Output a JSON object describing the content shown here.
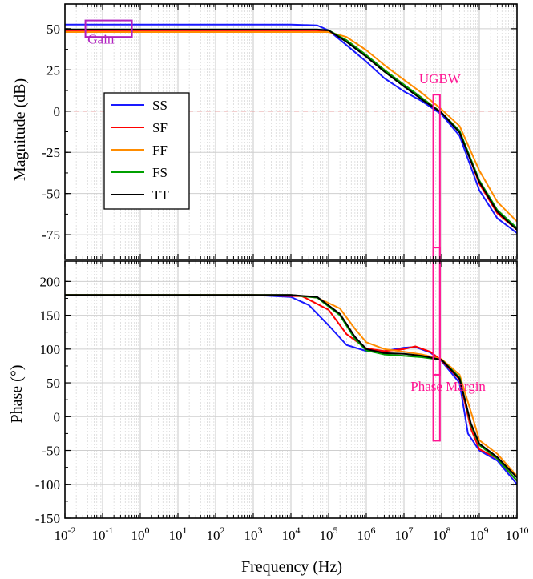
{
  "chart_data": {
    "type": "line",
    "x_scale": "log",
    "xlabel": "Frequency (Hz)",
    "xlim": [
      0.01,
      10000000000
    ],
    "x_ticks": [
      {
        "value": 0.01,
        "base": "10",
        "exp": "-2"
      },
      {
        "value": 0.1,
        "base": "10",
        "exp": "-1"
      },
      {
        "value": 1,
        "base": "10",
        "exp": "0"
      },
      {
        "value": 10,
        "base": "10",
        "exp": "1"
      },
      {
        "value": 100,
        "base": "10",
        "exp": "2"
      },
      {
        "value": 1000,
        "base": "10",
        "exp": "3"
      },
      {
        "value": 10000,
        "base": "10",
        "exp": "4"
      },
      {
        "value": 100000,
        "base": "10",
        "exp": "5"
      },
      {
        "value": 1000000,
        "base": "10",
        "exp": "6"
      },
      {
        "value": 10000000,
        "base": "10",
        "exp": "7"
      },
      {
        "value": 100000000,
        "base": "10",
        "exp": "8"
      },
      {
        "value": 1000000000,
        "base": "10",
        "exp": "9"
      },
      {
        "value": 10000000000,
        "base": "10",
        "exp": "10"
      }
    ],
    "grid": true,
    "legend": {
      "placement": "left-middle of magnitude panel",
      "entries": [
        "SS",
        "SF",
        "FF",
        "FS",
        "TT"
      ]
    },
    "panels": [
      {
        "name": "magnitude",
        "ylabel": "Magnitude (dB)",
        "ylim": [
          -90,
          65
        ],
        "y_ticks": [
          50,
          25,
          0,
          -25,
          -50,
          -75
        ],
        "y_tick_labels": [
          "50",
          "25",
          "0",
          "-25",
          "-50",
          "-75"
        ],
        "reference_line": {
          "y": 0,
          "color": "#e88a8a",
          "style": "dashed"
        },
        "series": [
          {
            "name": "SS",
            "color": "#1a1aff",
            "points": [
              [
                0.01,
                52.5
              ],
              [
                10000,
                52.5
              ],
              [
                50000,
                52
              ],
              [
                100000,
                49
              ],
              [
                300000,
                40
              ],
              [
                1000000,
                30
              ],
              [
                3000000,
                20
              ],
              [
                10000000,
                12
              ],
              [
                30000000,
                6
              ],
              [
                100000000,
                -2
              ],
              [
                300000000,
                -15
              ],
              [
                1000000000,
                -48
              ],
              [
                3000000000,
                -65
              ],
              [
                10000000000,
                -74
              ]
            ]
          },
          {
            "name": "SF",
            "color": "#ff0000",
            "points": [
              [
                0.01,
                49
              ],
              [
                50000,
                49
              ],
              [
                100000,
                48.5
              ],
              [
                300000,
                43
              ],
              [
                1000000,
                34
              ],
              [
                3000000,
                25
              ],
              [
                10000000,
                16
              ],
              [
                30000000,
                8
              ],
              [
                100000000,
                -1
              ],
              [
                300000000,
                -12
              ],
              [
                1000000000,
                -44
              ],
              [
                3000000000,
                -62
              ],
              [
                10000000000,
                -72
              ]
            ]
          },
          {
            "name": "FF",
            "color": "#ff8c00",
            "points": [
              [
                0.01,
                48
              ],
              [
                50000,
                48
              ],
              [
                100000,
                48
              ],
              [
                300000,
                45
              ],
              [
                1000000,
                37
              ],
              [
                3000000,
                28
              ],
              [
                10000000,
                19
              ],
              [
                30000000,
                11
              ],
              [
                100000000,
                1
              ],
              [
                300000000,
                -9
              ],
              [
                1000000000,
                -36
              ],
              [
                3000000000,
                -55
              ],
              [
                10000000000,
                -67
              ]
            ]
          },
          {
            "name": "FS",
            "color": "#00a000",
            "points": [
              [
                0.01,
                49.5
              ],
              [
                50000,
                49.5
              ],
              [
                100000,
                49
              ],
              [
                300000,
                43
              ],
              [
                1000000,
                34
              ],
              [
                3000000,
                25
              ],
              [
                10000000,
                16
              ],
              [
                30000000,
                8
              ],
              [
                100000000,
                -1
              ],
              [
                300000000,
                -12
              ],
              [
                1000000000,
                -42
              ],
              [
                3000000000,
                -60
              ],
              [
                10000000000,
                -71
              ]
            ]
          },
          {
            "name": "TT",
            "color": "#000000",
            "points": [
              [
                0.01,
                49.5
              ],
              [
                50000,
                49.5
              ],
              [
                100000,
                49
              ],
              [
                300000,
                42
              ],
              [
                1000000,
                33
              ],
              [
                3000000,
                24
              ],
              [
                10000000,
                15
              ],
              [
                30000000,
                7
              ],
              [
                100000000,
                -1
              ],
              [
                300000000,
                -13
              ],
              [
                1000000000,
                -43
              ],
              [
                3000000000,
                -61
              ],
              [
                10000000000,
                -72
              ]
            ]
          }
        ],
        "annotations": [
          {
            "text": "Gain",
            "color": "#b020c0",
            "box_x": [
              0.035,
              0.6
            ],
            "box_y": [
              45,
              55
            ],
            "label_at": [
              0.04,
              41
            ]
          },
          {
            "text": "UGBW",
            "color": "#ff1493",
            "box_x": [
              60000000,
              90000000
            ],
            "box_y": [
              -200,
              10
            ],
            "label_at": [
              90000000,
              17
            ]
          }
        ]
      },
      {
        "name": "phase",
        "ylabel": "Phase (°)",
        "ylim": [
          -150,
          230
        ],
        "y_ticks": [
          200,
          150,
          100,
          50,
          0,
          -50,
          -100,
          -150
        ],
        "y_tick_labels": [
          "200",
          "150",
          "100",
          "50",
          "0",
          "-50",
          "-100",
          "-150"
        ],
        "series": [
          {
            "name": "SS",
            "color": "#1a1aff",
            "points": [
              [
                0.01,
                180
              ],
              [
                1000,
                180
              ],
              [
                10000,
                177
              ],
              [
                30000,
                165
              ],
              [
                100000,
                135
              ],
              [
                300000,
                106
              ],
              [
                1000000,
                97
              ],
              [
                3000000,
                97
              ],
              [
                10000000,
                102
              ],
              [
                20000000,
                103
              ],
              [
                50000000,
                95
              ],
              [
                100000000,
                82
              ],
              [
                300000000,
                50
              ],
              [
                500000000,
                -25
              ],
              [
                1000000000,
                -50
              ],
              [
                3000000000,
                -65
              ],
              [
                10000000000,
                -100
              ]
            ]
          },
          {
            "name": "SF",
            "color": "#ff0000",
            "points": [
              [
                0.01,
                180
              ],
              [
                1000,
                180
              ],
              [
                20000,
                178
              ],
              [
                100000,
                158
              ],
              [
                300000,
                122
              ],
              [
                1000000,
                101
              ],
              [
                3000000,
                97
              ],
              [
                10000000,
                100
              ],
              [
                20000000,
                104
              ],
              [
                50000000,
                96
              ],
              [
                100000000,
                83
              ],
              [
                300000000,
                55
              ],
              [
                600000000,
                -18
              ],
              [
                1000000000,
                -48
              ],
              [
                3000000000,
                -62
              ],
              [
                10000000000,
                -95
              ]
            ]
          },
          {
            "name": "FF",
            "color": "#ff8c00",
            "points": [
              [
                0.01,
                180
              ],
              [
                10000,
                180
              ],
              [
                50000,
                176
              ],
              [
                200000,
                160
              ],
              [
                500000,
                130
              ],
              [
                1000000,
                110
              ],
              [
                3000000,
                100
              ],
              [
                10000000,
                96
              ],
              [
                30000000,
                92
              ],
              [
                100000000,
                85
              ],
              [
                300000000,
                62
              ],
              [
                700000000,
                -5
              ],
              [
                1000000000,
                -35
              ],
              [
                3000000000,
                -55
              ],
              [
                10000000000,
                -88
              ]
            ]
          },
          {
            "name": "FS",
            "color": "#00a000",
            "points": [
              [
                0.01,
                180
              ],
              [
                10000,
                180
              ],
              [
                50000,
                176
              ],
              [
                200000,
                150
              ],
              [
                500000,
                115
              ],
              [
                1000000,
                98
              ],
              [
                3000000,
                92
              ],
              [
                10000000,
                90
              ],
              [
                30000000,
                88
              ],
              [
                100000000,
                84
              ],
              [
                300000000,
                58
              ],
              [
                600000000,
                -12
              ],
              [
                1000000000,
                -42
              ],
              [
                3000000000,
                -62
              ],
              [
                10000000000,
                -95
              ]
            ]
          },
          {
            "name": "TT",
            "color": "#000000",
            "points": [
              [
                0.01,
                180
              ],
              [
                10000,
                180
              ],
              [
                50000,
                177
              ],
              [
                200000,
                152
              ],
              [
                500000,
                118
              ],
              [
                1000000,
                100
              ],
              [
                3000000,
                94
              ],
              [
                10000000,
                93
              ],
              [
                30000000,
                90
              ],
              [
                100000000,
                84
              ],
              [
                300000000,
                56
              ],
              [
                600000000,
                -10
              ],
              [
                1000000000,
                -40
              ],
              [
                3000000000,
                -60
              ],
              [
                10000000000,
                -90
              ]
            ]
          }
        ],
        "annotations": [
          {
            "text": "Phase Margin",
            "color": "#ff1493",
            "box_x": [
              60000000,
              90000000
            ],
            "box_y": [
              62,
              250
            ],
            "label_at": [
              15000000,
              38
            ]
          }
        ]
      }
    ]
  }
}
